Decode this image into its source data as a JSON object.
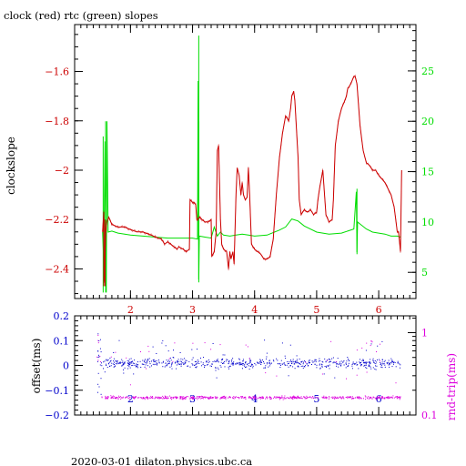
{
  "title": "clock (red) rtc (green) slopes",
  "footer": "2020-03-01  dilaton.physics.ubc.ca",
  "colors": {
    "red": "#cc0000",
    "green": "#00dd00",
    "blue": "#0000cc",
    "magenta": "#dd00dd",
    "black": "#000000"
  },
  "chart_data": [
    {
      "type": "line",
      "title": "clock (red) rtc (green) slopes",
      "xlabel": "",
      "ylabel": "clockslope",
      "y2label": "",
      "xlim": [
        1.1,
        6.6
      ],
      "ylim": [
        -2.52,
        -1.41
      ],
      "y2lim": [
        2.4,
        29.6
      ],
      "xticks": [
        2,
        3,
        4,
        5,
        6
      ],
      "yticks": [
        -2.4,
        -2.2,
        -2,
        -1.8,
        -1.6
      ],
      "y2ticks": [
        5,
        10,
        15,
        20,
        25
      ],
      "grid": false,
      "series": [
        {
          "name": "clock",
          "axis": "left",
          "color": "#cc0000",
          "x": [
            1.55,
            1.57,
            1.58,
            1.6,
            1.62,
            1.65,
            1.7,
            1.8,
            1.9,
            2.0,
            2.1,
            2.2,
            2.3,
            2.4,
            2.5,
            2.55,
            2.6,
            2.65,
            2.7,
            2.75,
            2.78,
            2.85,
            2.9,
            2.95,
            2.96,
            3.0,
            3.02,
            3.05,
            3.07,
            3.08,
            3.12,
            3.15,
            3.2,
            3.25,
            3.3,
            3.31,
            3.35,
            3.38,
            3.4,
            3.42,
            3.45,
            3.47,
            3.5,
            3.55,
            3.58,
            3.6,
            3.62,
            3.65,
            3.67,
            3.7,
            3.72,
            3.75,
            3.78,
            3.8,
            3.82,
            3.85,
            3.88,
            3.9,
            3.92,
            3.95,
            4.0,
            4.1,
            4.15,
            4.2,
            4.25,
            4.3,
            4.35,
            4.4,
            4.45,
            4.5,
            4.55,
            4.58,
            4.6,
            4.63,
            4.65,
            4.7,
            4.72,
            4.75,
            4.8,
            4.85,
            4.9,
            4.95,
            5.0,
            5.02,
            5.05,
            5.1,
            5.15,
            5.2,
            5.25,
            5.27,
            5.3,
            5.35,
            5.4,
            5.45,
            5.48,
            5.5,
            5.55,
            5.6,
            5.62,
            5.65,
            5.7,
            5.75,
            5.8,
            5.85,
            5.9,
            5.95,
            6.0,
            6.1,
            6.2,
            6.25,
            6.3,
            6.32,
            6.35,
            6.37
          ],
          "y": [
            -2.25,
            -2.17,
            -2.45,
            -2.25,
            -2.21,
            -2.19,
            -2.22,
            -2.23,
            -2.23,
            -2.24,
            -2.25,
            -2.25,
            -2.26,
            -2.27,
            -2.28,
            -2.3,
            -2.29,
            -2.3,
            -2.31,
            -2.32,
            -2.31,
            -2.32,
            -2.33,
            -2.32,
            -2.12,
            -2.13,
            -2.13,
            -2.14,
            -2.2,
            -2.2,
            -2.19,
            -2.2,
            -2.21,
            -2.21,
            -2.2,
            -2.35,
            -2.33,
            -2.25,
            -1.92,
            -1.9,
            -2.2,
            -2.3,
            -2.32,
            -2.33,
            -2.4,
            -2.33,
            -2.36,
            -2.33,
            -2.38,
            -2.1,
            -1.99,
            -2.02,
            -2.1,
            -2.05,
            -2.1,
            -2.12,
            -2.11,
            -1.99,
            -2.1,
            -2.3,
            -2.32,
            -2.34,
            -2.36,
            -2.36,
            -2.35,
            -2.28,
            -2.1,
            -1.95,
            -1.85,
            -1.78,
            -1.8,
            -1.75,
            -1.7,
            -1.68,
            -1.72,
            -1.95,
            -2.12,
            -2.18,
            -2.16,
            -2.17,
            -2.16,
            -2.18,
            -2.17,
            -2.12,
            -2.07,
            -2.0,
            -2.18,
            -2.21,
            -2.2,
            -2.12,
            -1.9,
            -1.8,
            -1.75,
            -1.72,
            -1.7,
            -1.67,
            -1.65,
            -1.62,
            -1.62,
            -1.65,
            -1.82,
            -1.92,
            -1.97,
            -1.98,
            -2.0,
            -2.0,
            -2.02,
            -2.05,
            -2.1,
            -2.15,
            -2.25,
            -2.25,
            -2.33,
            -2.0
          ],
          "hold": [
            1,
            1,
            1,
            1,
            1,
            1,
            1,
            1,
            1,
            1,
            1,
            1,
            1,
            1,
            1,
            1,
            1,
            1,
            1,
            1,
            1,
            1,
            1,
            1,
            0,
            1,
            1,
            1,
            1,
            1,
            1,
            1,
            1,
            1,
            1,
            0,
            1,
            1,
            1,
            1,
            1,
            1,
            1,
            1,
            1,
            1,
            1,
            1,
            1,
            0,
            1,
            1,
            1,
            1,
            1,
            1,
            1,
            1,
            1,
            1,
            1,
            1,
            1,
            1,
            1,
            1,
            1,
            1,
            1,
            1,
            1,
            1,
            1,
            1,
            1,
            1,
            1,
            1,
            1,
            1,
            1,
            1,
            1,
            1,
            1,
            1,
            1,
            1,
            1,
            1,
            1,
            1,
            1,
            1,
            1,
            1,
            1,
            1,
            1,
            1,
            1,
            1,
            1,
            1,
            1,
            1,
            1,
            1,
            1,
            1,
            1,
            1,
            1,
            1
          ]
        },
        {
          "name": "rtc",
          "axis": "right",
          "color": "#00dd00",
          "x": [
            1.55,
            1.57,
            1.59,
            1.6,
            1.61,
            1.62,
            1.64,
            1.7,
            1.8,
            2.0,
            2.2,
            2.4,
            2.6,
            2.8,
            3.0,
            3.08,
            3.09,
            3.1,
            3.11,
            3.2,
            3.3,
            3.35,
            3.4,
            3.45,
            3.5,
            3.6,
            3.7,
            3.8,
            3.9,
            4.0,
            4.2,
            4.4,
            4.5,
            4.6,
            4.7,
            4.8,
            5.0,
            5.2,
            5.4,
            5.6,
            5.64,
            5.65,
            5.66,
            5.7,
            5.8,
            5.9,
            6.0,
            6.1,
            6.2,
            6.3,
            6.35
          ],
          "y": [
            9,
            6,
            18,
            8,
            3,
            20,
            9,
            9.1,
            8.9,
            8.7,
            8.6,
            8.5,
            8.4,
            8.4,
            8.4,
            8.3,
            24,
            4,
            8.6,
            8.5,
            8.4,
            9.5,
            8.6,
            9,
            8.7,
            8.6,
            8.7,
            8.8,
            8.7,
            8.6,
            8.7,
            9.2,
            9.5,
            10.3,
            10.1,
            9.6,
            9,
            8.8,
            8.9,
            9.3,
            13,
            7,
            10,
            9.8,
            9.3,
            9,
            8.9,
            8.8,
            8.6,
            8.6,
            8.5
          ],
          "spikes": [
            [
              1.56,
              18.5,
              3.0
            ],
            [
              1.6,
              20.0,
              3.0
            ],
            [
              3.1,
              28.5,
              4.3
            ],
            [
              3.1,
              20.0,
              8.4
            ],
            [
              5.65,
              13.3,
              6.8
            ]
          ]
        }
      ]
    },
    {
      "type": "scatter",
      "xlabel": "",
      "ylabel": "offset(ms)",
      "y2label": "rnd-trip(ms)",
      "xlim": [
        1.1,
        6.6
      ],
      "ylim": [
        -0.2,
        0.2
      ],
      "y2lim_log": [
        0.1,
        1.6
      ],
      "xticks": [
        2,
        3,
        4,
        5,
        6
      ],
      "yticks": [
        -0.2,
        -0.1,
        0,
        0.1,
        0.2
      ],
      "y2ticks": [
        0.1,
        1
      ],
      "series": [
        {
          "name": "offset",
          "axis": "left",
          "color": "#0000cc",
          "x_range": [
            1.45,
            6.35
          ],
          "center": 0.01,
          "spread": 0.03
        },
        {
          "name": "rnd-trip",
          "axis": "right",
          "color": "#dd00dd",
          "x_range": [
            1.45,
            6.35
          ],
          "center": 0.165,
          "spread": 0.01
        }
      ]
    }
  ]
}
